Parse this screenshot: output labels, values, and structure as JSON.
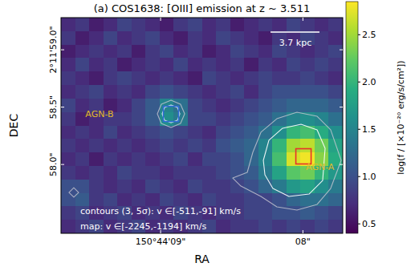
{
  "chart_data": {
    "type": "heatmap",
    "title": "(a) COS1638: [OIII] emission at z ~ 3.511",
    "x_label": "RA",
    "y_label": "DEC",
    "xlim": [
      9.7,
      7.72
    ],
    "ylim": [
      57.4,
      59.28
    ],
    "xticks": [
      {
        "value": 9,
        "label": "150°44'09\""
      },
      {
        "value": 8,
        "label": "08\""
      }
    ],
    "yticks": [
      {
        "value": 59,
        "label": "2°11'59.0\""
      },
      {
        "value": 58.5,
        "label": "58.5\""
      },
      {
        "value": 58,
        "label": "58.0\""
      }
    ],
    "cells": [
      [
        0.7,
        0.8,
        0.6,
        0.7,
        0.9,
        0.8,
        0.7,
        0.6,
        0.8,
        0.9,
        0.7,
        0.8,
        0.6,
        0.7,
        0.8,
        0.7,
        0.9,
        0.8,
        0.7,
        0.8
      ],
      [
        0.8,
        0.6,
        0.7,
        0.9,
        0.7,
        0.8,
        0.9,
        0.7,
        0.6,
        0.8,
        0.7,
        0.9,
        0.8,
        0.7,
        0.6,
        0.8,
        0.7,
        0.9,
        0.8,
        0.7
      ],
      [
        0.6,
        0.7,
        0.8,
        0.7,
        0.8,
        0.6,
        0.8,
        0.9,
        0.7,
        0.8,
        0.6,
        0.7,
        0.9,
        0.8,
        0.7,
        0.9,
        0.8,
        0.7,
        0.8,
        0.9
      ],
      [
        0.7,
        0.9,
        0.7,
        0.8,
        0.6,
        0.7,
        0.8,
        0.7,
        0.9,
        0.7,
        0.8,
        0.7,
        0.8,
        0.6,
        0.8,
        0.7,
        0.9,
        0.8,
        0.9,
        0.8
      ],
      [
        0.8,
        0.7,
        0.6,
        0.8,
        0.9,
        0.8,
        0.7,
        0.8,
        0.7,
        0.6,
        0.9,
        0.8,
        0.7,
        0.8,
        0.9,
        0.8,
        0.8,
        0.9,
        0.8,
        0.7
      ],
      [
        0.7,
        0.8,
        0.9,
        0.7,
        0.8,
        0.7,
        0.9,
        1.0,
        0.9,
        0.8,
        0.7,
        0.8,
        0.9,
        0.7,
        0.9,
        1.0,
        1.0,
        1.0,
        1.0,
        0.9
      ],
      [
        0.9,
        0.7,
        0.8,
        0.6,
        0.7,
        0.9,
        1.1,
        1.5,
        1.3,
        0.9,
        0.8,
        0.7,
        0.8,
        0.9,
        1.0,
        1.1,
        1.2,
        1.2,
        1.2,
        1.1
      ],
      [
        0.8,
        0.6,
        0.7,
        0.8,
        0.8,
        0.9,
        1.1,
        1.6,
        1.4,
        0.9,
        0.9,
        0.8,
        0.9,
        1.0,
        1.1,
        1.3,
        1.5,
        1.6,
        1.5,
        1.3
      ],
      [
        0.7,
        0.8,
        0.7,
        0.9,
        0.7,
        0.8,
        0.9,
        1.0,
        0.9,
        0.8,
        0.7,
        0.9,
        1.0,
        1.1,
        1.3,
        1.6,
        2.0,
        2.1,
        1.9,
        1.6
      ],
      [
        0.8,
        0.7,
        0.8,
        0.7,
        0.8,
        0.7,
        0.8,
        0.9,
        0.8,
        0.9,
        0.8,
        1.0,
        1.1,
        1.2,
        1.5,
        2.0,
        2.5,
        2.6,
        2.3,
        1.8
      ],
      [
        0.7,
        0.8,
        0.6,
        0.8,
        0.7,
        0.8,
        0.7,
        0.8,
        0.9,
        0.7,
        0.9,
        0.9,
        1.0,
        1.2,
        1.5,
        2.1,
        2.7,
        2.8,
        2.4,
        1.9
      ],
      [
        0.8,
        0.7,
        0.8,
        0.7,
        0.9,
        0.8,
        0.8,
        0.7,
        0.8,
        0.8,
        0.8,
        0.9,
        1.0,
        1.1,
        1.4,
        1.8,
        2.2,
        2.3,
        2.0,
        1.7
      ],
      [
        1.0,
        1.0,
        0.8,
        0.7,
        0.8,
        0.7,
        0.9,
        0.8,
        0.7,
        0.9,
        0.8,
        0.8,
        0.9,
        1.0,
        1.2,
        1.4,
        1.7,
        1.8,
        1.6,
        1.4
      ],
      [
        1.0,
        1.1,
        0.8,
        0.9,
        0.7,
        0.8,
        0.7,
        0.9,
        0.8,
        0.7,
        0.9,
        0.8,
        0.8,
        0.9,
        0.9,
        1.0,
        1.2,
        1.3,
        1.3,
        1.2
      ],
      [
        0.8,
        0.9,
        0.7,
        0.8,
        0.9,
        0.7,
        0.8,
        0.7,
        0.9,
        0.8,
        0.7,
        0.8,
        0.8,
        0.9,
        0.9,
        1.0,
        1.0,
        1.1,
        1.0,
        0.9
      ],
      [
        0.7,
        0.8,
        0.9,
        0.7,
        0.8,
        0.9,
        0.7,
        0.8,
        0.7,
        0.8,
        0.9,
        0.7,
        0.8,
        0.8,
        0.9,
        0.8,
        0.9,
        0.8,
        0.9,
        0.8
      ]
    ],
    "colorbar_label": "log(f / [×10⁻²⁰ erg/s/cm²])",
    "colorbar_lim": [
      0.4,
      2.85
    ],
    "colorbar_ticks": [
      0.5,
      {
        "value": 1,
        "label": "1.0"
      },
      1.5,
      {
        "value": 2,
        "label": "2.0"
      },
      2.5
    ],
    "contours": [
      {
        "level": 3,
        "ra": [
          8.391,
          8.352,
          8.295,
          8.183,
          8.042,
          7.9,
          7.805,
          7.731,
          7.805,
          7.9,
          8.042,
          8.183,
          8.295,
          8.436,
          8.493
        ],
        "dec": [
          57.931,
          58.106,
          58.281,
          58.399,
          58.455,
          58.42,
          58.302,
          58.036,
          57.791,
          57.652,
          57.603,
          57.631,
          57.722,
          57.812,
          57.882
        ]
      },
      {
        "level": 5,
        "ra": [
          8.278,
          8.239,
          8.143,
          8.013,
          7.9,
          7.844,
          7.861,
          7.957,
          8.098,
          8.211,
          8.267
        ],
        "dec": [
          58.036,
          58.211,
          58.316,
          58.351,
          58.302,
          58.141,
          57.861,
          57.742,
          57.722,
          57.791,
          57.91
        ]
      },
      {
        "level": 3,
        "ra": [
          8.831,
          8.86,
          8.927,
          8.995,
          9.023,
          8.995,
          8.927,
          8.86
        ],
        "dec": [
          58.441,
          58.357,
          58.323,
          58.357,
          58.441,
          58.525,
          58.56,
          58.525
        ]
      },
      {
        "level": 5,
        "ra": [
          8.865,
          8.882,
          8.927,
          8.972,
          8.989,
          8.972,
          8.927,
          8.882
        ],
        "dec": [
          58.441,
          58.385,
          58.364,
          58.385,
          58.441,
          58.497,
          58.518,
          58.497
        ]
      },
      {
        "level": 3,
        "ra": [
          9.576,
          9.61,
          9.644,
          9.61
        ],
        "dec": [
          57.756,
          57.715,
          57.756,
          57.798
        ]
      }
    ],
    "sources": [
      {
        "label": "AGN-B",
        "ra": 8.927,
        "dec": 58.441,
        "color": "#2f6bd6"
      },
      {
        "label": "AGN-A",
        "ra": 7.996,
        "dec": 58.071,
        "color": "#e8312a"
      }
    ],
    "annotations": [
      "contours (3, 5σ): v ∈[-511,-91] km/s",
      "map: v ∈[-2245,-1194] km/s"
    ],
    "scale_bar": "3.7 kpc"
  }
}
